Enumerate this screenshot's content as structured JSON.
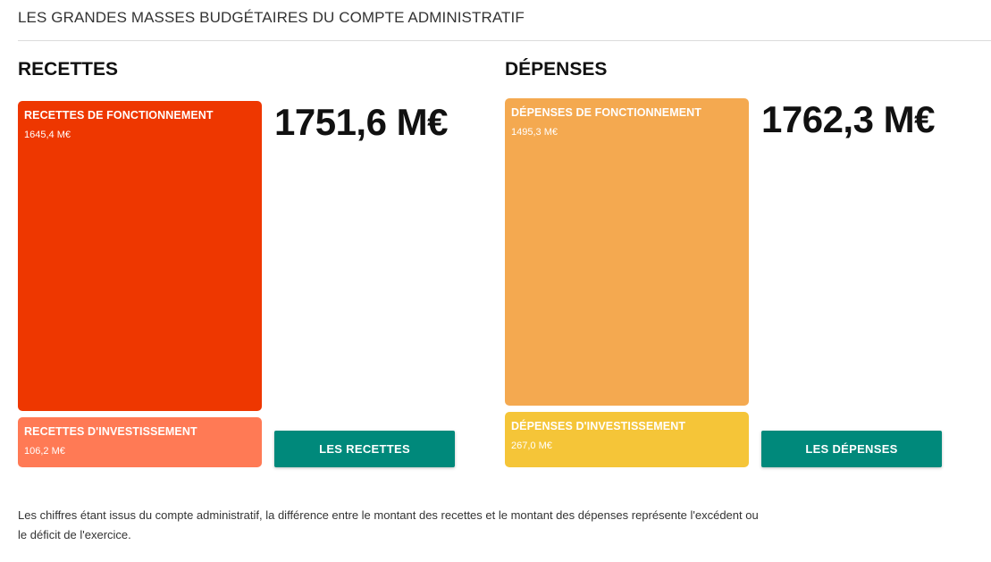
{
  "page": {
    "title": "LES GRANDES MASSES BUDGÉTAIRES DU COMPTE ADMINISTRATIF",
    "footnote": "Les chiffres étant issus du compte administratif, la différence entre le montant des recettes et le montant des dépenses représente l'excédent ou le déficit de l'exercice."
  },
  "recettes": {
    "heading": "RECETTES",
    "total": "1751,6 M€",
    "fonctionnement": {
      "label": "RECETTES DE FONCTIONNEMENT",
      "value": "1645,4 M€",
      "amount": 1645.4,
      "color": "#ee3700"
    },
    "investissement": {
      "label": "RECETTES D'INVESTISSEMENT",
      "value": "106,2 M€",
      "amount": 106.2,
      "color": "#ff7a55"
    },
    "button_label": "LES RECETTES"
  },
  "depenses": {
    "heading": "DÉPENSES",
    "total": "1762,3 M€",
    "fonctionnement": {
      "label": "DÉPENSES DE FONCTIONNEMENT",
      "value": "1495,3 M€",
      "amount": 1495.3,
      "color": "#f4a950"
    },
    "investissement": {
      "label": "DÉPENSES D'INVESTISSEMENT",
      "value": "267,0 M€",
      "amount": 267.0,
      "color": "#f5c538"
    },
    "button_label": "LES DÉPENSES"
  },
  "colors": {
    "button": "#00897b"
  }
}
